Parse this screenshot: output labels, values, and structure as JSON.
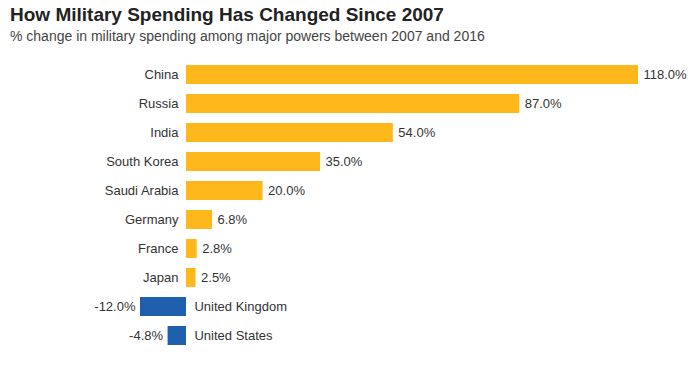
{
  "chart_data": {
    "type": "bar",
    "orientation": "horizontal",
    "title": "How Military Spending Has Changed Since 2007",
    "subtitle": "% change in military spending among major powers between 2007 and 2016",
    "categories": [
      "China",
      "Russia",
      "India",
      "South Korea",
      "Saudi Arabia",
      "Germany",
      "France",
      "Japan",
      "United Kingdom",
      "United States"
    ],
    "values": [
      118.0,
      87.0,
      54.0,
      35.0,
      20.0,
      6.8,
      2.8,
      2.5,
      -12.0,
      -4.8
    ],
    "value_labels": [
      "118.0%",
      "87.0%",
      "54.0%",
      "35.0%",
      "20.0%",
      "6.8%",
      "2.8%",
      "2.5%",
      "-12.0%",
      "-4.8%"
    ],
    "colors": [
      "#ffb81c",
      "#ffb81c",
      "#ffb81c",
      "#ffb81c",
      "#ffb81c",
      "#ffb81c",
      "#ffb81c",
      "#ffb81c",
      "#1f5fad",
      "#1f5fad"
    ],
    "xlim": [
      -12,
      118
    ],
    "data_labels": true,
    "tick_labels": false,
    "grid": false
  }
}
